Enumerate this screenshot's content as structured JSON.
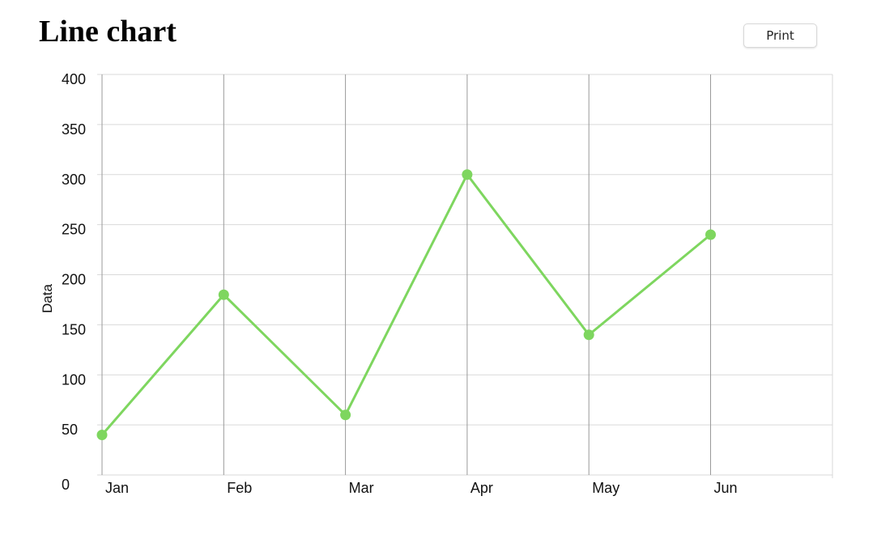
{
  "header": {
    "title": "Line chart",
    "print_label": "Print"
  },
  "colors": {
    "series": "#7ed65f",
    "grid_horizontal": "#d9d9d9",
    "grid_vertical": "#9a9a9a",
    "text": "#111111"
  },
  "chart_data": {
    "type": "line",
    "title": "Line chart",
    "xlabel": "",
    "ylabel": "Data",
    "categories": [
      "Jan",
      "Feb",
      "Mar",
      "Apr",
      "May",
      "Jun"
    ],
    "series": [
      {
        "values": [
          40,
          180,
          60,
          300,
          140,
          240
        ]
      }
    ],
    "ylim": [
      0,
      400
    ],
    "yticks": [
      0,
      50,
      100,
      150,
      200,
      250,
      300,
      350,
      400
    ],
    "grid": true,
    "legend": "none",
    "markers": true
  }
}
